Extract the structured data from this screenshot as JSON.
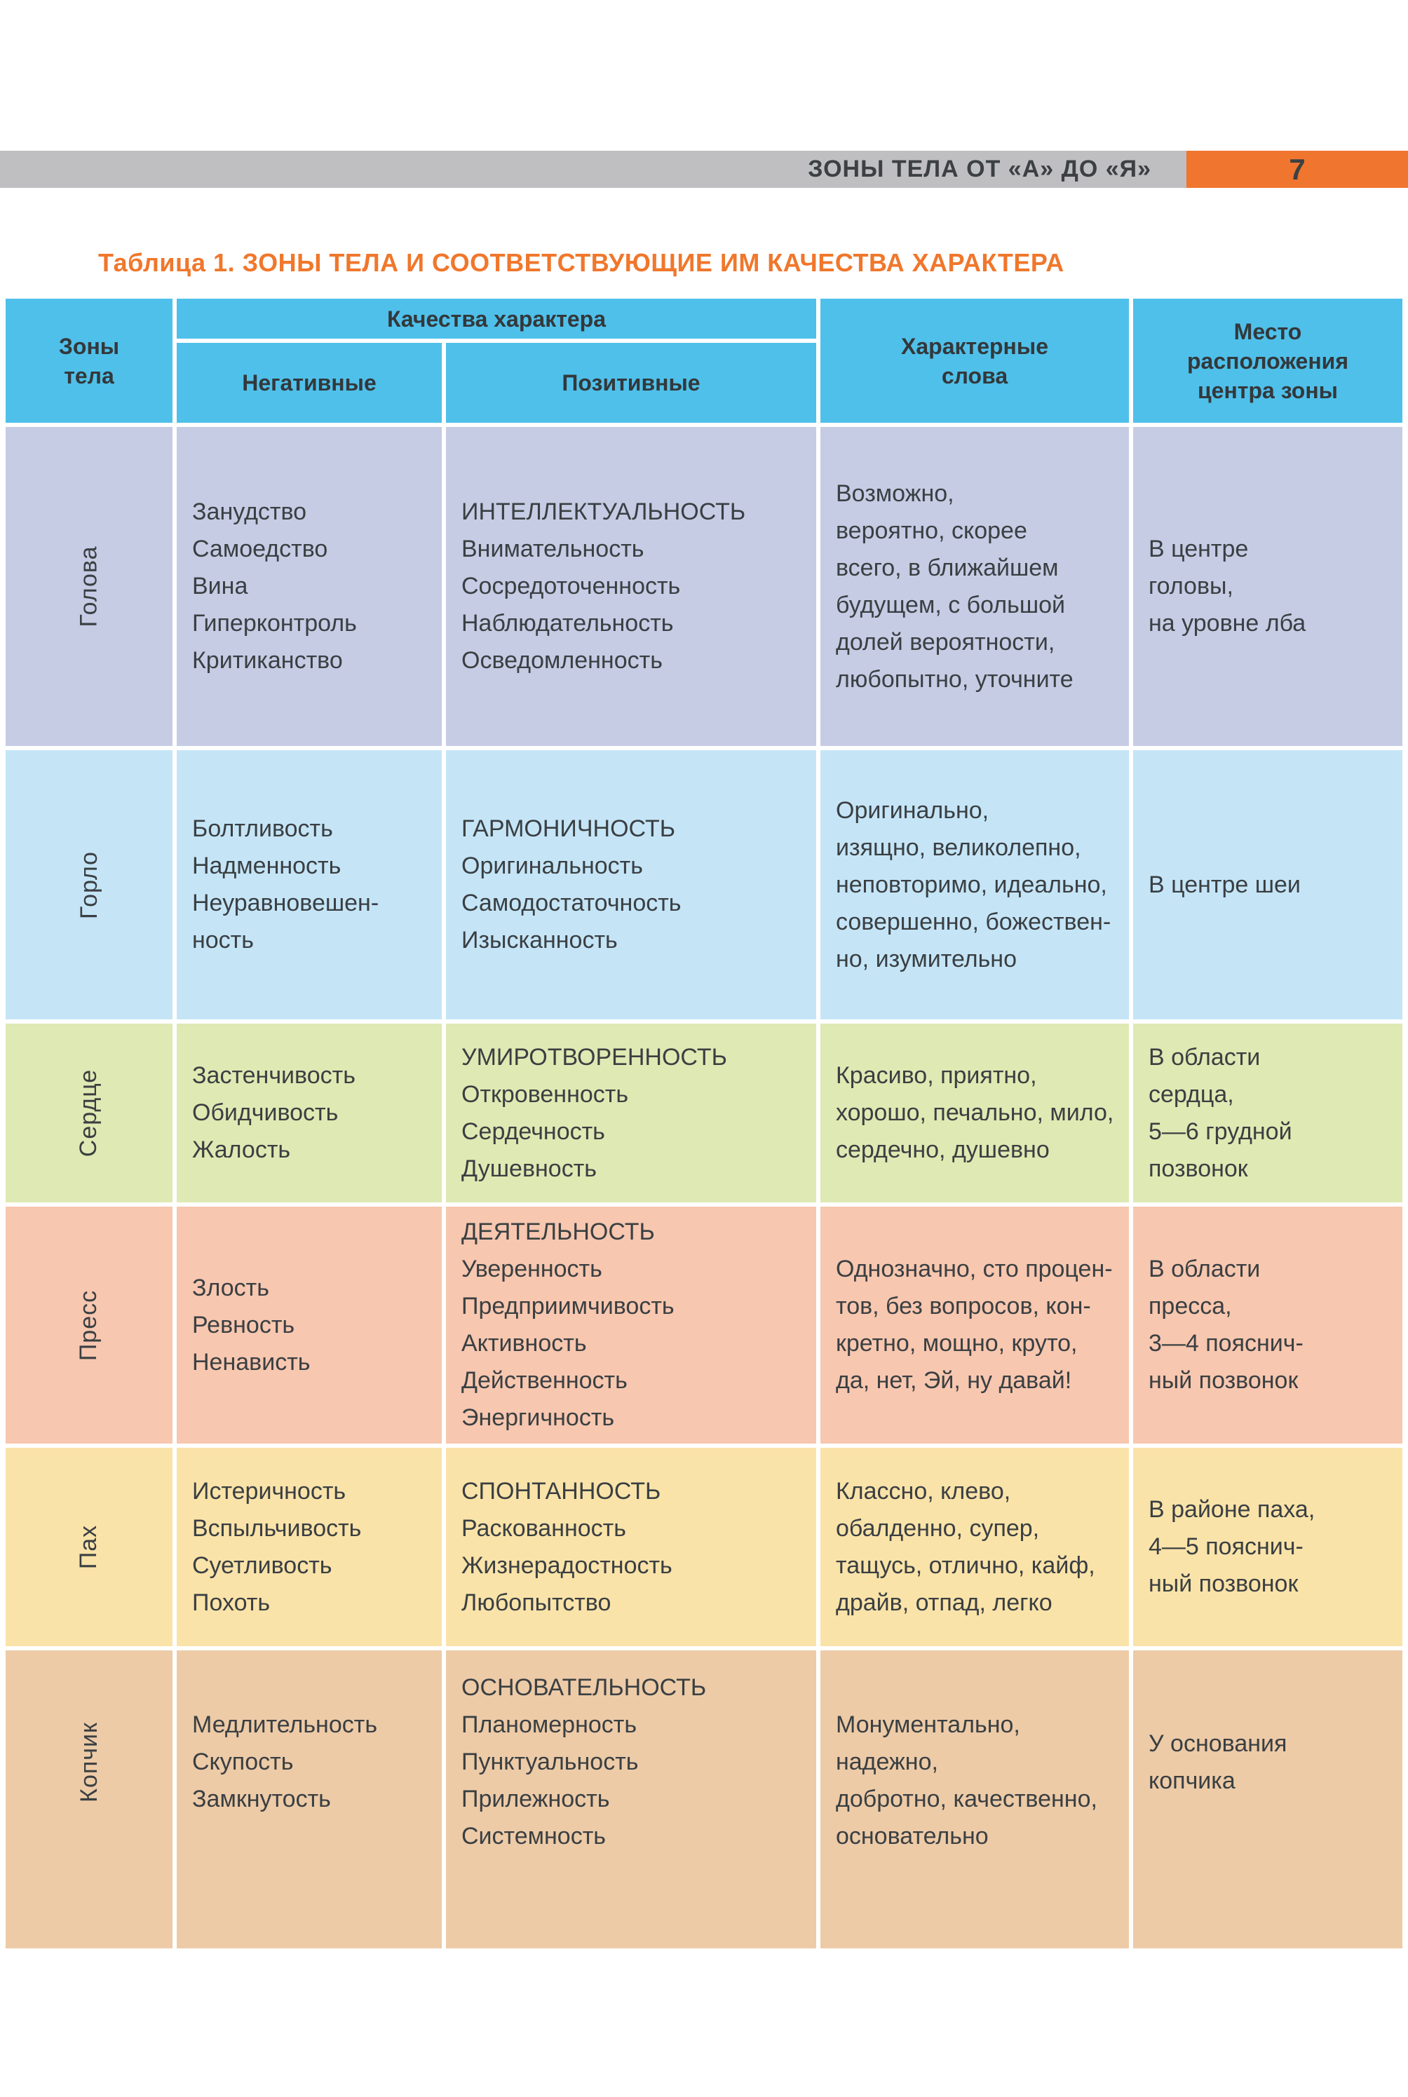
{
  "page": {
    "runhead": {
      "title": "ЗОНЫ ТЕЛА ОТ «А» ДО «Я»",
      "page_number": "7",
      "bar_gray": "#bfbfc1",
      "bar_orange": "#f0752f"
    },
    "table_title": "Таблица 1. ЗОНЫ ТЕЛА И СООТВЕТСТВУЮЩИЕ ИМ КАЧЕСТВА ХАРАКТЕРА",
    "title_color": "#f0772c"
  },
  "table": {
    "header_bg": "#4fc0ea",
    "headers": {
      "zone": "Зоны\nтела",
      "qualities": "Качества характера",
      "negative": "Негативные",
      "positive": "Позитивные",
      "words": "Характерные\nслова",
      "location": "Место\nрасположения\nцентра зоны"
    },
    "rows": [
      {
        "zone": "Голова",
        "bg": "#c6cce4",
        "negative": [
          "Занудство",
          "Самоедство",
          "Вина",
          "Гиперконтроль",
          "Критиканство"
        ],
        "positive": [
          "ИНТЕЛЛЕКТУАЛЬНОСТЬ",
          "Внимательность",
          "Сосредоточенность",
          "Наблюдательность",
          "Осведомленность"
        ],
        "words": [
          "Возможно,",
          "вероятно, скорее",
          "всего, в ближайшем",
          "будущем, с большой",
          "долей вероятности,",
          "любопытно, уточните"
        ],
        "location": [
          "В центре",
          "головы,",
          "на уровне лба"
        ]
      },
      {
        "zone": "Горло",
        "bg": "#c5e5f7",
        "negative": [
          "Болтливость",
          "Надменность",
          "Неуравновешен-",
          "ность"
        ],
        "positive": [
          "ГАРМОНИЧНОСТЬ",
          "Оригинальность",
          "Самодостаточность",
          "Изысканность"
        ],
        "words": [
          "Оригинально,",
          "изящно, великолепно,",
          "неповторимо, идеально,",
          "совершенно, божествен-",
          "но, изумительно"
        ],
        "location": [
          "В центре шеи"
        ]
      },
      {
        "zone": "Сердце",
        "bg": "#dfe9b3",
        "negative": [
          "Застенчивость",
          "Обидчивость",
          "Жалость"
        ],
        "positive": [
          "УМИРОТВОРЕННОСТЬ",
          "Откровенность",
          "Сердечность",
          "Душевность"
        ],
        "words": [
          "Красиво, приятно,",
          "хорошо, печально, мило,",
          "сердечно, душевно"
        ],
        "location": [
          "В области",
          "сердца,",
          "5—6 грудной",
          "позвонок"
        ]
      },
      {
        "zone": "Пресс",
        "bg": "#f7c7af",
        "negative": [
          "Злость",
          "Ревность",
          "Ненависть"
        ],
        "positive": [
          "ДЕЯТЕЛЬНОСТЬ",
          "Уверенность",
          "Предприимчивость",
          "Активность",
          "Действенность",
          "Энергичность"
        ],
        "words": [
          "Однозначно, сто процен-",
          "тов, без вопросов, кон-",
          "кретно, мощно, круто,",
          "да, нет, Эй, ну давай!"
        ],
        "location": [
          "В области",
          "пресса,",
          "3—4 пояснич-",
          "ный позвонок"
        ]
      },
      {
        "zone": "Пах",
        "bg": "#fae3a9",
        "negative": [
          "Истеричность",
          "Вспыльчивость",
          "Суетливость",
          "Похоть"
        ],
        "positive": [
          "СПОНТАННОСТЬ",
          "Раскованность",
          "Жизнерадостность",
          "Любопытство"
        ],
        "words": [
          "Классно, клево,",
          "обалденно, супер,",
          "тащусь, отлично, кайф,",
          "драйв, отпад, легко"
        ],
        "location": [
          "В районе паха,",
          "4—5 пояснич-",
          "ный позвонок"
        ]
      },
      {
        "zone": "Копчик",
        "bg": "#edcba7",
        "negative": [
          "Медлительность",
          "Скупость",
          "Замкнутость"
        ],
        "positive": [
          "ОСНОВАТЕЛЬНОСТЬ",
          "Планомерность",
          "Пунктуальность",
          "Прилежность",
          "Системность"
        ],
        "words": [
          "Монументально, надежно,",
          "добротно, качественно,",
          "основательно"
        ],
        "location": [
          "У основания",
          "копчика"
        ]
      }
    ]
  }
}
